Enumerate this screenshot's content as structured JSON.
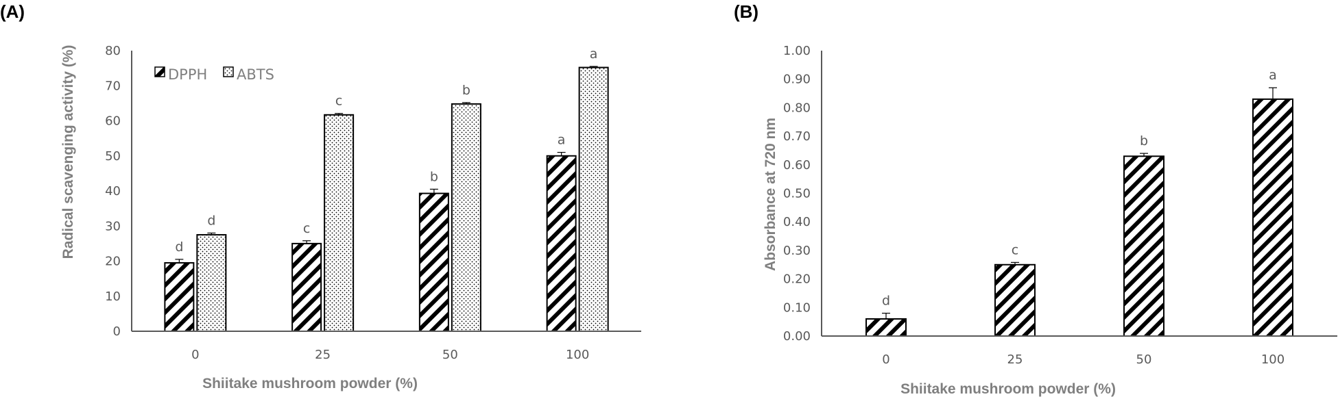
{
  "chart_data": [
    {
      "panel_label": "(A)",
      "type": "bar",
      "categories": [
        "0",
        "25",
        "50",
        "100"
      ],
      "xlabel": "Shiitake mushroom powder (%)",
      "ylabel": "Radical scavenging activity (%)",
      "ylim": [
        0,
        80
      ],
      "yticks": [
        "0",
        "10",
        "20",
        "30",
        "40",
        "50",
        "60",
        "70",
        "80"
      ],
      "legend_position": "top-left",
      "series": [
        {
          "name": "DPPH",
          "pattern": "diagonal-hatch",
          "values": [
            19.5,
            25.0,
            39.3,
            50.0
          ],
          "errors": [
            1.0,
            0.8,
            1.2,
            1.0
          ],
          "letters": [
            "d",
            "c",
            "b",
            "a"
          ]
        },
        {
          "name": "ABTS",
          "pattern": "dots",
          "values": [
            27.5,
            61.7,
            64.8,
            75.2
          ],
          "errors": [
            0.5,
            0.4,
            0.4,
            0.3
          ],
          "letters": [
            "d",
            "c",
            "b",
            "a"
          ]
        }
      ]
    },
    {
      "panel_label": "(B)",
      "type": "bar",
      "categories": [
        "0",
        "25",
        "50",
        "100"
      ],
      "xlabel": "Shiitake mushroom powder (%)",
      "ylabel": "Absorbance at 720 nm",
      "ylim": [
        0,
        1.0
      ],
      "yticks": [
        "0.00",
        "0.10",
        "0.20",
        "0.30",
        "0.40",
        "0.50",
        "0.60",
        "0.70",
        "0.80",
        "0.90",
        "1.00"
      ],
      "series": [
        {
          "pattern": "diagonal-hatch",
          "values": [
            0.06,
            0.25,
            0.63,
            0.83
          ],
          "errors": [
            0.02,
            0.008,
            0.01,
            0.04
          ],
          "letters": [
            "d",
            "c",
            "b",
            "a"
          ]
        }
      ]
    }
  ],
  "colors": {
    "axis": "#595959",
    "bar_stroke": "#000000",
    "text": "#595959",
    "title": "#7f7f7f"
  }
}
